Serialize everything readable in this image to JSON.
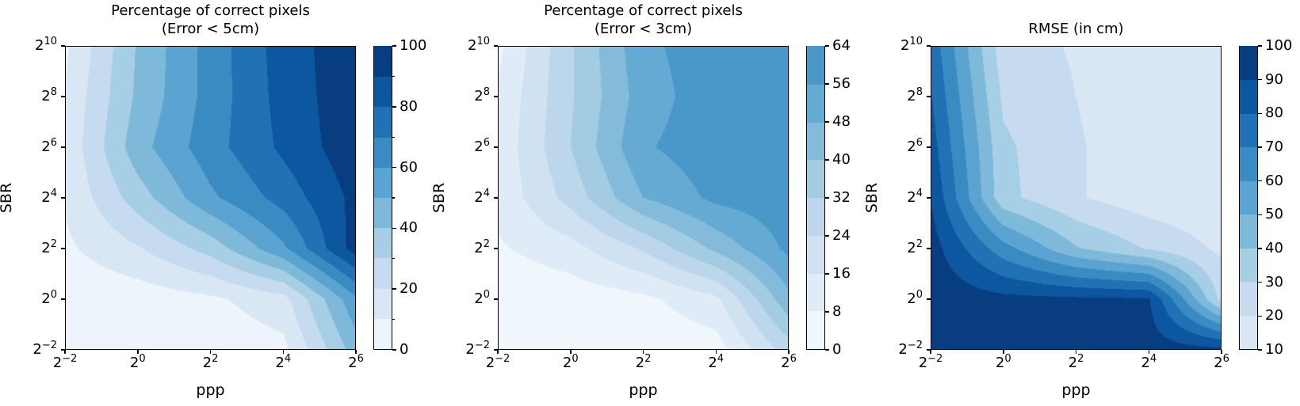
{
  "figure": {
    "background": "#ffffff",
    "text_color": "#000000",
    "description": "Three filled contour plots (Blues colormap) of SPAD lidar depth estimation quality versus photons-per-pixel (ppp) and signal-to-background ratio (SBR)."
  },
  "chart_data": [
    {
      "type": "contour",
      "title_lines": [
        "Percentage of correct pixels",
        "(Error < 5cm)"
      ],
      "xlabel": "ppp",
      "ylabel": "SBR",
      "x_scale": "log2",
      "y_scale": "log2",
      "x_range_exp": [
        -2,
        6
      ],
      "y_range_exp": [
        -2,
        10
      ],
      "x_tick_exp_labels": [
        "−2",
        "0",
        "2",
        "4",
        "6"
      ],
      "y_tick_exp_labels": [
        "−2",
        "0",
        "2",
        "4",
        "6",
        "8",
        "10"
      ],
      "x_tick_exps": [
        -2,
        0,
        2,
        4,
        6
      ],
      "y_tick_exps": [
        -2,
        0,
        2,
        4,
        6,
        8,
        10
      ],
      "grid_x_exps": [
        -2,
        0,
        2,
        4,
        6
      ],
      "grid_y_exps": [
        -2,
        0,
        2,
        4,
        6,
        8,
        10
      ],
      "values_rows_y_ascending": [
        [
          1,
          2,
          3,
          7,
          45
        ],
        [
          2,
          4,
          8,
          16,
          58
        ],
        [
          8,
          19,
          34,
          58,
          95
        ],
        [
          11,
          35,
          58,
          74,
          93
        ],
        [
          12,
          46,
          66,
          82,
          97
        ],
        [
          11,
          42,
          64,
          84,
          97
        ],
        [
          8,
          41,
          64,
          85,
          97
        ]
      ],
      "levels": [
        0,
        10,
        20,
        30,
        40,
        50,
        60,
        70,
        80,
        90,
        100
      ],
      "band_colors": [
        "#edf4fc",
        "#d9e7f5",
        "#c6dbef",
        "#a6cee4",
        "#7fb9da",
        "#5ba3d0",
        "#3b8bc3",
        "#2171b5",
        "#0d57a1",
        "#083d7f"
      ],
      "colorbar": {
        "labeled_ticks": [
          0,
          20,
          40,
          60,
          80,
          100
        ],
        "minor_ticks": [
          10,
          30,
          50,
          70,
          90
        ],
        "min": 0,
        "max": 100
      }
    },
    {
      "type": "contour",
      "title_lines": [
        "Percentage of correct pixels",
        "(Error < 3cm)"
      ],
      "xlabel": "ppp",
      "ylabel": "SBR",
      "x_scale": "log2",
      "y_scale": "log2",
      "x_range_exp": [
        -2,
        6
      ],
      "y_range_exp": [
        -2,
        10
      ],
      "x_tick_exp_labels": [
        "−2",
        "0",
        "2",
        "4",
        "6"
      ],
      "y_tick_exp_labels": [
        "−2",
        "0",
        "2",
        "4",
        "6",
        "8",
        "10"
      ],
      "x_tick_exps": [
        -2,
        0,
        2,
        4,
        6
      ],
      "y_tick_exps": [
        -2,
        0,
        2,
        4,
        6,
        8,
        10
      ],
      "grid_x_exps": [
        -2,
        0,
        2,
        4,
        6
      ],
      "grid_y_exps": [
        -2,
        0,
        2,
        4,
        6,
        8,
        10
      ],
      "values_rows_y_ascending": [
        [
          1,
          1,
          2,
          4,
          28
        ],
        [
          1,
          3,
          6,
          14,
          46
        ],
        [
          7,
          13,
          25,
          42,
          58
        ],
        [
          10,
          27,
          48,
          58,
          61
        ],
        [
          10,
          32,
          55,
          61,
          63
        ],
        [
          9,
          31,
          52,
          61,
          63
        ],
        [
          6,
          31,
          54,
          61,
          63
        ]
      ],
      "levels": [
        0,
        8,
        16,
        24,
        32,
        40,
        48,
        56,
        64
      ],
      "band_colors": [
        "#eff6fc",
        "#dfecf7",
        "#d0e1f2",
        "#bcd7ec",
        "#a3cce3",
        "#84bbdb",
        "#64aad3",
        "#4a98c9"
      ],
      "colorbar": {
        "labeled_ticks": [
          0,
          8,
          16,
          24,
          32,
          40,
          48,
          56,
          64
        ],
        "minor_ticks": [],
        "min": 0,
        "max": 64
      }
    },
    {
      "type": "contour",
      "title_lines": [
        "RMSE (in cm)"
      ],
      "xlabel": "ppp",
      "ylabel": "SBR",
      "x_scale": "log2",
      "y_scale": "log2",
      "x_range_exp": [
        -2,
        6
      ],
      "y_range_exp": [
        -2,
        10
      ],
      "x_tick_exp_labels": [
        "−2",
        "0",
        "2",
        "4",
        "6"
      ],
      "y_tick_exp_labels": [
        "−2",
        "0",
        "2",
        "4",
        "6",
        "8",
        "10"
      ],
      "x_tick_exps": [
        -2,
        0,
        2,
        4,
        6
      ],
      "y_tick_exps": [
        -2,
        0,
        2,
        4,
        6,
        8,
        10
      ],
      "grid_x_exps": [
        -2,
        0,
        2,
        4,
        6
      ],
      "grid_y_exps": [
        -2,
        0,
        2,
        4,
        6,
        8,
        10
      ],
      "values_rows_y_ascending": [
        [
          98,
          97,
          96,
          95,
          93
        ],
        [
          97,
          93,
          92,
          91,
          27
        ],
        [
          95,
          64,
          41,
          29,
          18
        ],
        [
          90,
          33,
          21,
          14,
          12
        ],
        [
          85,
          32,
          21,
          14,
          12
        ],
        [
          81,
          28,
          20,
          14,
          12
        ],
        [
          77,
          24,
          19,
          13,
          11
        ]
      ],
      "levels": [
        10,
        20,
        30,
        40,
        50,
        60,
        70,
        80,
        90,
        100
      ],
      "band_colors": [
        "#d9e7f5",
        "#c6dbef",
        "#a6cee4",
        "#7fb9da",
        "#5ba3d0",
        "#3b8bc3",
        "#2171b5",
        "#0d57a1",
        "#083d7f"
      ],
      "colorbar": {
        "labeled_ticks": [
          10,
          20,
          30,
          40,
          50,
          60,
          70,
          80,
          90,
          100
        ],
        "minor_ticks": [],
        "min": 10,
        "max": 100
      }
    }
  ]
}
